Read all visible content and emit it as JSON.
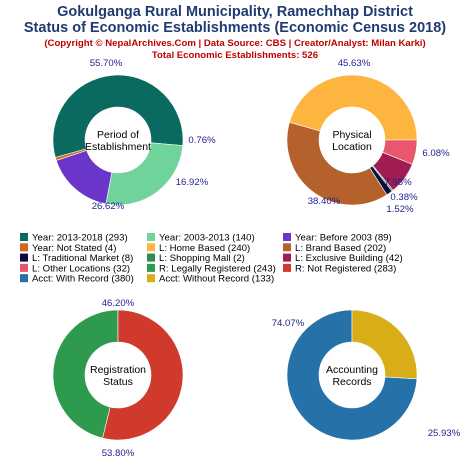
{
  "header": {
    "title_line1": "Gokulganga Rural Municipality, Ramechhap District",
    "title_line2": "Status of Economic Establishments (Economic Census 2018)",
    "copyright": "(Copyright © NepalArchives.Com | Data Source: CBS | Creator/Analyst: Milan Karki)",
    "total": "Total Economic Establishments: 526"
  },
  "chart_data": [
    {
      "type": "pie",
      "center_label": [
        "Period of",
        "Establishment"
      ],
      "categories": [
        "Year: 2013-2018",
        "Year: 2003-2013",
        "Year: Before 2003",
        "Year: Not Stated"
      ],
      "values": [
        293,
        140,
        89,
        4
      ],
      "percent_labels": [
        "55.70%",
        "26.62%",
        "16.92%",
        "0.76%"
      ],
      "colors": [
        "#0b6a60",
        "#6fd39b",
        "#6a35c9",
        "#d2691e"
      ]
    },
    {
      "type": "pie",
      "center_label": [
        "Physical",
        "Location"
      ],
      "categories": [
        "L: Home Based",
        "L: Brand Based",
        "L: Traditional Market",
        "L: Shopping Mall",
        "L: Exclusive Building",
        "L: Other Locations"
      ],
      "values": [
        240,
        202,
        8,
        2,
        42,
        32
      ],
      "percent_labels": [
        "45.63%",
        "38.40%",
        "1.52%",
        "0.38%",
        "7.98%",
        "6.08%"
      ],
      "colors": [
        "#fdb53f",
        "#b5612c",
        "#0b0b3d",
        "#2d8c4f",
        "#9f1d52",
        "#e8576e"
      ]
    },
    {
      "type": "pie",
      "center_label": [
        "Registration",
        "Status"
      ],
      "categories": [
        "R: Legally Registered",
        "R: Not Registered"
      ],
      "values": [
        243,
        283
      ],
      "percent_labels": [
        "46.20%",
        "53.80%"
      ],
      "colors": [
        "#2e9a4e",
        "#cf3a2d"
      ]
    },
    {
      "type": "pie",
      "center_label": [
        "Accounting",
        "Records"
      ],
      "categories": [
        "Acct: With Record",
        "Acct: Without Record"
      ],
      "values": [
        380,
        133
      ],
      "percent_labels": [
        "74.07%",
        "25.93%"
      ],
      "colors": [
        "#2671a8",
        "#d8ad18"
      ]
    }
  ],
  "legend": [
    {
      "label": "Year: 2013-2018 (293)",
      "color": "#0b6a60"
    },
    {
      "label": "Year: 2003-2013 (140)",
      "color": "#6fd39b"
    },
    {
      "label": "Year: Before 2003 (89)",
      "color": "#6a35c9"
    },
    {
      "label": "Year: Not Stated (4)",
      "color": "#d2691e"
    },
    {
      "label": "L: Home Based (240)",
      "color": "#fdb53f"
    },
    {
      "label": "L: Brand Based (202)",
      "color": "#b5612c"
    },
    {
      "label": "L: Traditional Market (8)",
      "color": "#0b0b3d"
    },
    {
      "label": "L: Shopping Mall (2)",
      "color": "#2d8c4f"
    },
    {
      "label": "L: Exclusive Building (42)",
      "color": "#9f1d52"
    },
    {
      "label": "L: Other Locations (32)",
      "color": "#e8576e"
    },
    {
      "label": "R: Legally Registered (243)",
      "color": "#2e9a4e"
    },
    {
      "label": "R: Not Registered (283)",
      "color": "#cf3a2d"
    },
    {
      "label": "Acct: With Record (380)",
      "color": "#2671a8"
    },
    {
      "label": "Acct: Without Record (133)",
      "color": "#d8ad18"
    }
  ]
}
